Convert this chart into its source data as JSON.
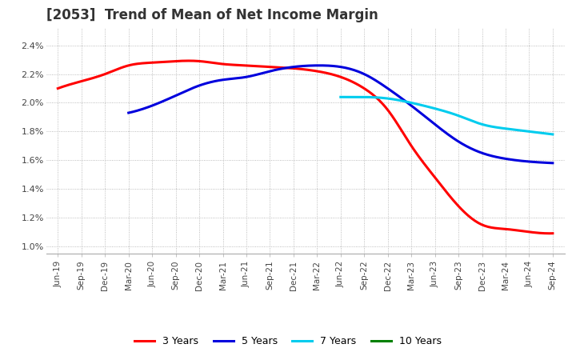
{
  "title": "[2053]  Trend of Mean of Net Income Margin",
  "title_fontsize": 12,
  "title_color": "#333333",
  "background_color": "#ffffff",
  "plot_background": "#ffffff",
  "grid_color": "#aaaaaa",
  "ylim": [
    0.0095,
    0.0252
  ],
  "yticks": [
    0.01,
    0.012,
    0.014,
    0.016,
    0.018,
    0.02,
    0.022,
    0.024
  ],
  "x_labels": [
    "Jun-19",
    "Sep-19",
    "Dec-19",
    "Mar-20",
    "Jun-20",
    "Sep-20",
    "Dec-20",
    "Mar-21",
    "Jun-21",
    "Sep-21",
    "Dec-21",
    "Mar-22",
    "Jun-22",
    "Sep-22",
    "Dec-22",
    "Mar-23",
    "Jun-23",
    "Sep-23",
    "Dec-23",
    "Mar-24",
    "Jun-24",
    "Sep-24"
  ],
  "series": {
    "3 Years": {
      "color": "#ff0000",
      "values": [
        0.021,
        0.0215,
        0.022,
        0.0226,
        0.0228,
        0.0229,
        0.0229,
        0.0227,
        0.0226,
        0.0225,
        0.0224,
        0.0222,
        0.0218,
        0.021,
        0.0195,
        0.017,
        0.0148,
        0.0128,
        0.0115,
        0.0112,
        0.011,
        0.0109
      ]
    },
    "5 Years": {
      "color": "#0000dd",
      "values": [
        null,
        null,
        null,
        0.0193,
        0.0198,
        0.0205,
        0.0212,
        0.0216,
        0.0218,
        0.0222,
        0.0225,
        0.0226,
        0.0225,
        0.022,
        0.021,
        0.0198,
        0.0185,
        0.0173,
        0.0165,
        0.0161,
        0.0159,
        0.0158
      ]
    },
    "7 Years": {
      "color": "#00ccee",
      "values": [
        null,
        null,
        null,
        null,
        null,
        null,
        null,
        null,
        null,
        null,
        null,
        null,
        0.0204,
        0.0204,
        0.0203,
        0.02,
        0.0196,
        0.0191,
        0.0185,
        0.0182,
        0.018,
        0.0178
      ]
    },
    "10 Years": {
      "color": "#008000",
      "values": [
        null,
        null,
        null,
        null,
        null,
        null,
        null,
        null,
        null,
        null,
        null,
        null,
        null,
        null,
        null,
        null,
        null,
        null,
        null,
        null,
        null,
        null
      ]
    }
  },
  "legend_entries": [
    "3 Years",
    "5 Years",
    "7 Years",
    "10 Years"
  ],
  "legend_colors": [
    "#ff0000",
    "#0000dd",
    "#00ccee",
    "#008000"
  ],
  "line_width": 2.2
}
